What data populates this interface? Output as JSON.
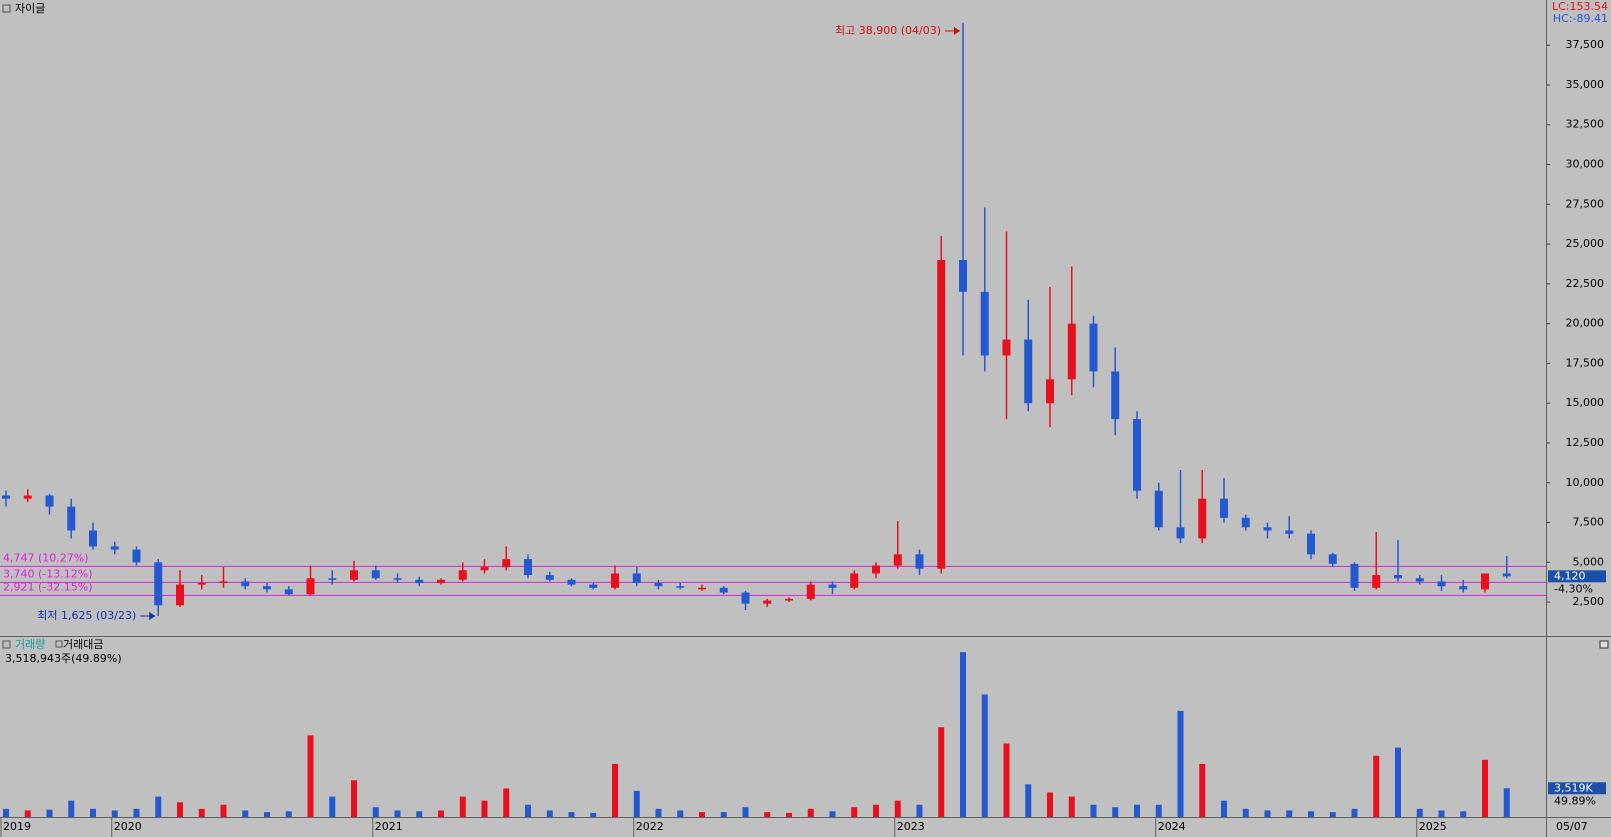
{
  "title": "자이글",
  "indicators": {
    "lc": "LC:153.54",
    "hc": "HC:-89.41"
  },
  "chart_data": {
    "type": "candlestick",
    "categories": [
      "2019",
      null,
      null,
      null,
      null,
      "2020",
      null,
      null,
      null,
      null,
      null,
      null,
      null,
      null,
      null,
      null,
      null,
      "2021",
      null,
      null,
      null,
      null,
      null,
      null,
      null,
      null,
      null,
      null,
      null,
      "2022",
      null,
      null,
      null,
      null,
      null,
      null,
      null,
      null,
      null,
      null,
      null,
      "2023",
      null,
      null,
      null,
      null,
      null,
      null,
      null,
      null,
      null,
      null,
      null,
      "2024",
      null,
      null,
      null,
      null,
      null,
      null,
      null,
      null,
      null,
      null,
      null,
      "2025",
      null,
      null,
      null,
      "05/07"
    ],
    "open": [
      9200,
      9000,
      9200,
      8500,
      7000,
      6000,
      5800,
      5000,
      2300,
      3600,
      3700,
      3800,
      3500,
      3300,
      3000,
      4000,
      3900,
      4500,
      4000,
      3900,
      3700,
      3900,
      4500,
      4700,
      5200,
      4200,
      3900,
      3600,
      3400,
      4300,
      3700,
      3500,
      3400,
      3400,
      3100,
      2400,
      2600,
      2700,
      3600,
      3400,
      4300,
      4800,
      5500,
      4600,
      24000,
      22000,
      18000,
      19000,
      15000,
      16500,
      20000,
      17000,
      14000,
      9500,
      7200,
      6500,
      9000,
      7800,
      7200,
      7000,
      6800,
      5500,
      4900,
      3400,
      4200,
      4000,
      3800,
      3500,
      3300,
      4300
    ],
    "high": [
      9500,
      9600,
      9300,
      9000,
      7500,
      6300,
      6000,
      5200,
      4500,
      4200,
      4700,
      4000,
      3700,
      3500,
      4800,
      4500,
      5100,
      4800,
      4300,
      4100,
      4000,
      5000,
      5200,
      6000,
      5500,
      4400,
      4000,
      3700,
      4800,
      4700,
      3900,
      3700,
      3600,
      3500,
      3200,
      2700,
      2800,
      3800,
      3800,
      4500,
      5000,
      7600,
      5800,
      25500,
      38900,
      27300,
      25800,
      21500,
      22300,
      23600,
      20500,
      18500,
      14500,
      10000,
      10800,
      10800,
      10300,
      8000,
      7500,
      7900,
      7000,
      5600,
      5000,
      6900,
      6400,
      4200,
      4200,
      3900,
      4300,
      5400
    ],
    "low": [
      8500,
      8800,
      8000,
      6500,
      5800,
      5500,
      4800,
      1625,
      2200,
      3300,
      3400,
      3300,
      3100,
      2900,
      2900,
      3600,
      3800,
      3900,
      3700,
      3500,
      3600,
      3800,
      4300,
      4500,
      4000,
      3800,
      3500,
      3300,
      3300,
      3500,
      3300,
      3300,
      3200,
      3000,
      2000,
      2200,
      2500,
      2600,
      3000,
      3300,
      4000,
      4600,
      4200,
      4300,
      18000,
      17000,
      14000,
      14500,
      13500,
      15500,
      16000,
      13000,
      9000,
      7000,
      6200,
      6200,
      7500,
      7000,
      6500,
      6500,
      5200,
      4700,
      3200,
      3300,
      3800,
      3600,
      3200,
      3100,
      3100,
      4000
    ],
    "close": [
      9000,
      9200,
      8500,
      7000,
      6000,
      5800,
      5000,
      2300,
      3600,
      3700,
      3800,
      3500,
      3300,
      3000,
      4000,
      3900,
      4500,
      4000,
      3900,
      3700,
      3900,
      4500,
      4700,
      5200,
      4200,
      3900,
      3600,
      3400,
      4300,
      3700,
      3500,
      3400,
      3400,
      3100,
      2400,
      2600,
      2700,
      3600,
      3400,
      4300,
      4800,
      5500,
      4600,
      24000,
      22000,
      18000,
      19000,
      15000,
      16500,
      20000,
      17000,
      14000,
      9500,
      7200,
      6500,
      9000,
      7800,
      7200,
      7000,
      6800,
      5500,
      4900,
      3400,
      4200,
      4000,
      3800,
      3500,
      3300,
      4300,
      4120
    ],
    "up_color": "#e8101c",
    "down_color": "#2458d0",
    "ylim": [
      370,
      40340
    ],
    "yticks": [
      {
        "value": 2500,
        "label": "2,500"
      },
      {
        "value": 5000,
        "label": "5,000"
      },
      {
        "value": 7500,
        "label": "7,500"
      },
      {
        "value": 10000,
        "label": "10,000"
      },
      {
        "value": 12500,
        "label": "12,500"
      },
      {
        "value": 15000,
        "label": "15,000"
      },
      {
        "value": 17500,
        "label": "17,500"
      },
      {
        "value": 20000,
        "label": "20,000"
      },
      {
        "value": 22500,
        "label": "22,500"
      },
      {
        "value": 25000,
        "label": "25,000"
      },
      {
        "value": 27500,
        "label": "27,500"
      },
      {
        "value": 30000,
        "label": "30,000"
      },
      {
        "value": 32500,
        "label": "32,500"
      },
      {
        "value": 35000,
        "label": "35,000"
      },
      {
        "value": 37500,
        "label": "37,500"
      }
    ],
    "last_price": {
      "value": 4120,
      "label": "4,120"
    },
    "change_label": "-4.30%",
    "hlines": [
      {
        "value": 4747,
        "label": "4,747 (10.27%)"
      },
      {
        "value": 3740,
        "label": "3,740 (-13.12%)"
      },
      {
        "value": 2921,
        "label": "2,921 (-32.15%)"
      }
    ],
    "hline_color": "#e020e0",
    "annotations": {
      "high": "최고 38,900 (04/03)",
      "low": "최저 1,625 (03/23)"
    },
    "volume": {
      "legend": [
        "거래량",
        "거래대금"
      ],
      "summary": "3,518,943주(49.89%)",
      "values": [
        1000000,
        800000,
        900000,
        2000000,
        1000000,
        800000,
        1000000,
        2500000,
        1800000,
        1000000,
        1500000,
        800000,
        600000,
        700000,
        10000000,
        2500000,
        4500000,
        1200000,
        800000,
        700000,
        800000,
        2500000,
        2000000,
        3500000,
        1500000,
        800000,
        600000,
        500000,
        6500000,
        3200000,
        1000000,
        800000,
        600000,
        600000,
        1200000,
        600000,
        500000,
        1000000,
        700000,
        1200000,
        1500000,
        2000000,
        1500000,
        11000000,
        20200000,
        15000000,
        9000000,
        4000000,
        3000000,
        2500000,
        1500000,
        1200000,
        1500000,
        1500000,
        13000000,
        6500000,
        2000000,
        1000000,
        800000,
        800000,
        700000,
        600000,
        1000000,
        7500000,
        8500000,
        1000000,
        800000,
        700000,
        7000000,
        3518943
      ],
      "last_value_label": "3,519K",
      "ratio_label": "49.89%",
      "ylim": [
        0,
        21800000
      ]
    }
  }
}
